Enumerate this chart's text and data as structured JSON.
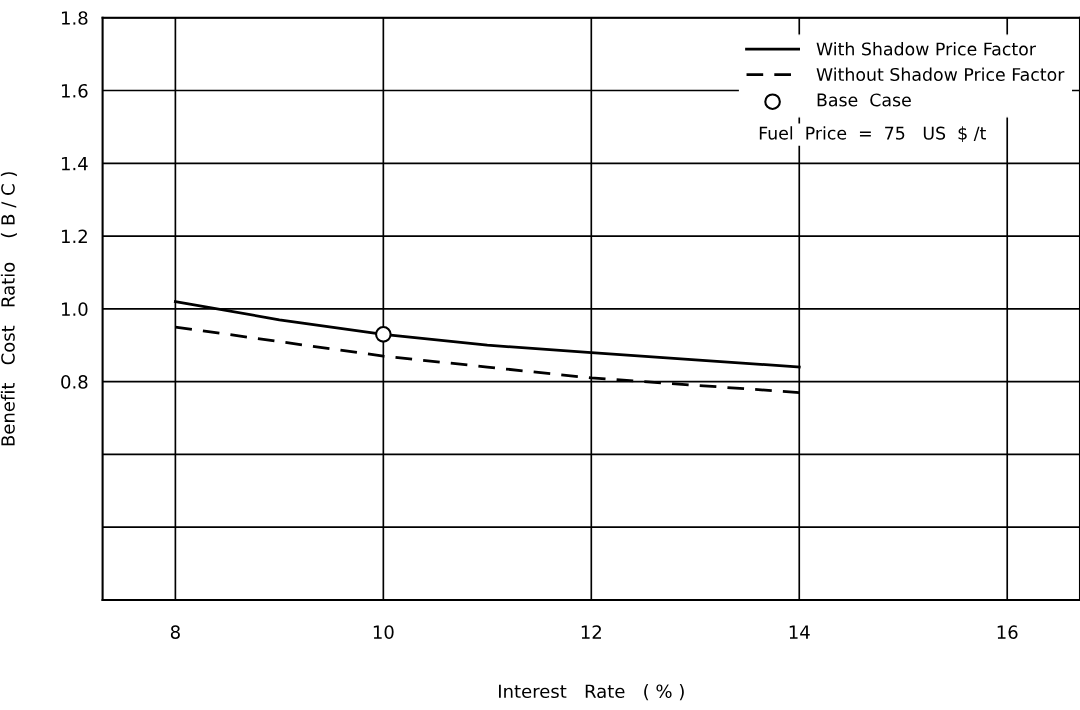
{
  "chart_data": {
    "type": "line",
    "xlabel": "Interest   Rate   ( % )",
    "ylabel": "Benefit   Cost   Ratio    ( B / C )",
    "x": [
      8,
      9,
      10,
      11,
      12,
      13,
      14
    ],
    "series": [
      {
        "name": "With Shadow Price Factor",
        "color": "#000000",
        "line_style": "solid",
        "values": [
          1.02,
          0.97,
          0.93,
          0.9,
          0.88,
          0.86,
          0.84
        ]
      },
      {
        "name": "Without Shadow Price Factor",
        "color": "#000000",
        "line_style": "dashed",
        "values": [
          0.95,
          0.91,
          0.87,
          0.84,
          0.81,
          0.79,
          0.77
        ]
      },
      {
        "name": "Base  Case",
        "type": "scatter",
        "color": "#000000",
        "marker": "circle",
        "x": [
          10
        ],
        "values": [
          0.93
        ]
      }
    ],
    "annotations": [
      "Fuel  Price  =  75   US  $ /t"
    ],
    "xlim": [
      7.3,
      16.7
    ],
    "xticks": [
      8,
      10,
      12,
      14,
      16
    ],
    "ylim": [
      0.2,
      1.8
    ],
    "yticks": [
      {
        "value": 0.4,
        "label": null
      },
      {
        "value": 0.6,
        "label": null
      },
      0.8,
      {
        "value": 1.0,
        "label": "1.0"
      },
      1.2,
      1.4,
      1.6,
      1.8
    ],
    "grid": true,
    "legend": "top right"
  }
}
